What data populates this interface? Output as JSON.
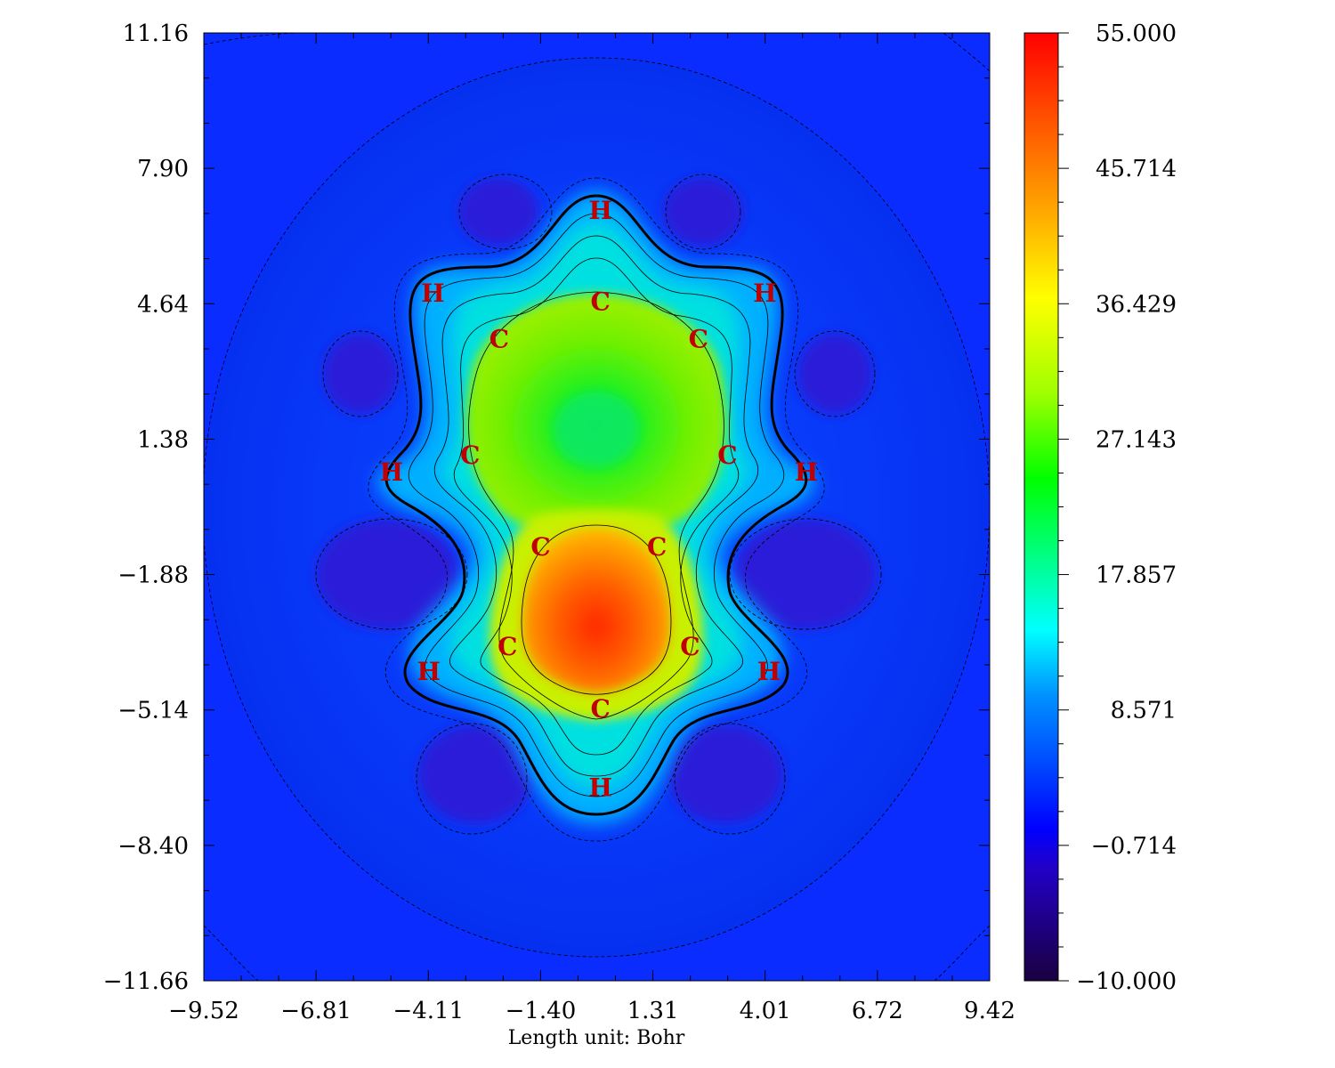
{
  "chart_data": {
    "type": "heatmap",
    "title": "",
    "xlabel": "Length unit: Bohr",
    "ylabel": "",
    "xlim": [
      -9.52,
      9.42
    ],
    "ylim": [
      -11.66,
      11.16
    ],
    "x_ticks": [
      "−9.52",
      "−6.81",
      "−4.11",
      "−1.40",
      "1.31",
      "4.01",
      "6.72",
      "9.42"
    ],
    "y_ticks": [
      "11.16",
      "7.90",
      "4.64",
      "1.38",
      "−1.88",
      "−5.14",
      "−8.40",
      "−11.66"
    ],
    "colorbar": {
      "range": [
        -10.0,
        55.0
      ],
      "ticks": [
        "55.000",
        "45.714",
        "36.429",
        "27.143",
        "17.857",
        "8.571",
        "−0.714",
        "−10.000"
      ],
      "colormap": [
        "#1a0040",
        "#0000ff",
        "#00ffff",
        "#00ff00",
        "#ffff00",
        "#ff0000"
      ]
    },
    "atoms": [
      {
        "label": "H",
        "x": 0.04,
        "y": 6.9
      },
      {
        "label": "H",
        "x": -4.0,
        "y": 4.9
      },
      {
        "label": "H",
        "x": 4.0,
        "y": 4.9
      },
      {
        "label": "C",
        "x": 0.04,
        "y": 4.7
      },
      {
        "label": "C",
        "x": -2.4,
        "y": 3.8
      },
      {
        "label": "C",
        "x": 2.4,
        "y": 3.8
      },
      {
        "label": "C",
        "x": -3.1,
        "y": 1.0
      },
      {
        "label": "C",
        "x": 3.1,
        "y": 1.0
      },
      {
        "label": "H",
        "x": -5.0,
        "y": 0.6
      },
      {
        "label": "H",
        "x": 5.0,
        "y": 0.6
      },
      {
        "label": "C",
        "x": -1.4,
        "y": -1.2
      },
      {
        "label": "C",
        "x": 1.4,
        "y": -1.2
      },
      {
        "label": "C",
        "x": -2.2,
        "y": -3.6
      },
      {
        "label": "C",
        "x": 2.2,
        "y": -3.6
      },
      {
        "label": "H",
        "x": -4.1,
        "y": -4.2
      },
      {
        "label": "H",
        "x": 4.1,
        "y": -4.2
      },
      {
        "label": "C",
        "x": 0.04,
        "y": -5.1
      },
      {
        "label": "H",
        "x": 0.04,
        "y": -7.0
      }
    ]
  }
}
